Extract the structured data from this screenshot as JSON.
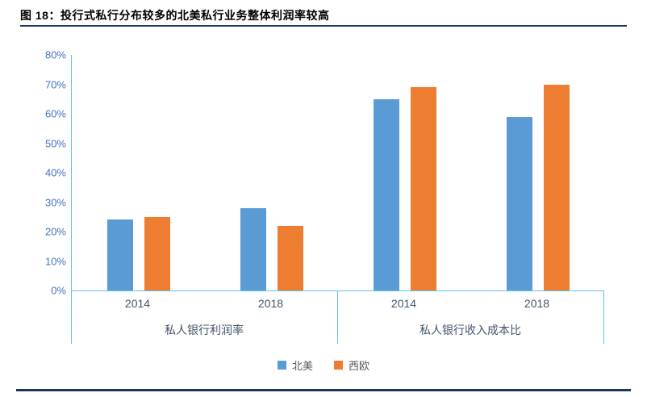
{
  "title": {
    "prefix": "图 18：",
    "text": "投行式私行分布较多的北美私行业务整体利润率较高"
  },
  "chart_data": {
    "type": "bar",
    "title": "投行式私行分布较多的北美私行业务整体利润率较高",
    "xlabel": "",
    "ylabel": "",
    "ylim": [
      0,
      80
    ],
    "ytick_step": 10,
    "yticks": [
      "0%",
      "10%",
      "20%",
      "30%",
      "40%",
      "50%",
      "60%",
      "70%",
      "80%"
    ],
    "grid": false,
    "legend_position": "bottom",
    "categories": [
      "2014",
      "2018",
      "2014",
      "2018"
    ],
    "groups": [
      {
        "label": "私人银行利润率",
        "categories": [
          "2014",
          "2018"
        ]
      },
      {
        "label": "私人银行收入成本比",
        "categories": [
          "2014",
          "2018"
        ]
      }
    ],
    "series": [
      {
        "name": "北美",
        "color": "#5B9BD5",
        "values": [
          24,
          28,
          65,
          59
        ]
      },
      {
        "name": "西欧",
        "color": "#ED7D31",
        "values": [
          25,
          22,
          69,
          70
        ]
      }
    ]
  },
  "colors": {
    "axis": "#5FC3EC",
    "tick_label": "#4472C4",
    "category_label": "#44546A",
    "legend_label": "#595959",
    "rule": "#17375E",
    "series_north_america": "#5B9BD5",
    "series_western_europe": "#ED7D31"
  }
}
